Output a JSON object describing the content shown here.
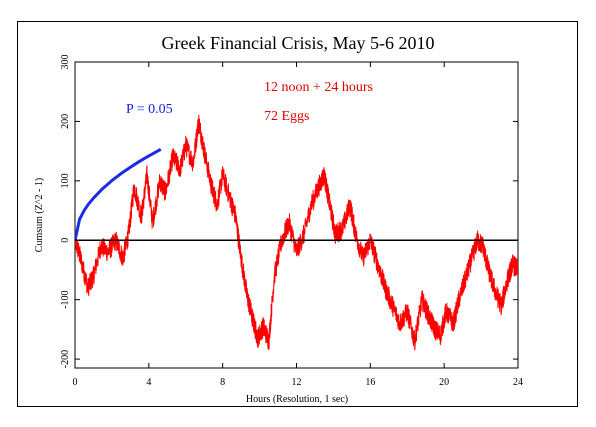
{
  "chart_data": {
    "type": "line",
    "title": "Greek Financial Crisis, May 5-6 2010",
    "xlabel": "Hours (Resolution, 1 sec)",
    "ylabel": "Cumsum (Z^2 - 1)",
    "xlim": [
      0,
      24
    ],
    "ylim": [
      -215,
      300
    ],
    "x_ticks": [
      0,
      4,
      8,
      12,
      16,
      20,
      24
    ],
    "y_ticks": [
      -200,
      -100,
      0,
      100,
      200,
      300
    ],
    "grid": false,
    "annotations": [
      {
        "text": "12 noon + 24 hours",
        "color": "#e00000"
      },
      {
        "text": "72 Eggs",
        "color": "#e00000"
      },
      {
        "text": "P = 0.05",
        "color": "#1020e0"
      }
    ],
    "series": [
      {
        "name": "cumsum",
        "color": "#ff0000",
        "x": [
          0,
          0.3,
          0.7,
          1.0,
          1.4,
          1.8,
          2.2,
          2.6,
          2.9,
          3.2,
          3.6,
          3.9,
          4.2,
          4.6,
          4.9,
          5.3,
          5.7,
          6.0,
          6.4,
          6.7,
          7.0,
          7.4,
          7.7,
          8.0,
          8.4,
          8.7,
          9.0,
          9.3,
          9.6,
          9.9,
          10.2,
          10.5,
          10.8,
          11.2,
          11.6,
          12.0,
          12.4,
          12.8,
          13.2,
          13.5,
          13.8,
          14.1,
          14.5,
          14.9,
          15.2,
          15.6,
          16.0,
          16.4,
          16.8,
          17.2,
          17.6,
          18.0,
          18.4,
          18.8,
          19.2,
          19.5,
          19.8,
          20.1,
          20.5,
          20.8,
          21.2,
          21.5,
          21.8,
          22.1,
          22.4,
          22.8,
          23.1,
          23.4,
          23.7,
          24.0
        ],
        "y": [
          0,
          -30,
          -80,
          -60,
          -10,
          -20,
          0,
          -30,
          10,
          90,
          40,
          110,
          30,
          100,
          80,
          140,
          120,
          160,
          130,
          200,
          150,
          90,
          60,
          110,
          70,
          40,
          -30,
          -90,
          -130,
          -165,
          -145,
          -170,
          -60,
          0,
          30,
          -20,
          10,
          60,
          90,
          110,
          60,
          10,
          20,
          60,
          10,
          -30,
          0,
          -40,
          -80,
          -110,
          -140,
          -120,
          -170,
          -100,
          -130,
          -150,
          -160,
          -120,
          -140,
          -100,
          -60,
          -30,
          0,
          -10,
          -50,
          -90,
          -110,
          -70,
          -40,
          -50
        ]
      },
      {
        "name": "P = 0.05",
        "color": "#1a2be8",
        "x": [
          0,
          0.25,
          0.5,
          0.75,
          1.0,
          1.5,
          2.0,
          2.5,
          3.0,
          3.5,
          4.0,
          4.5,
          4.65
        ],
        "y": [
          0,
          35.5,
          50.2,
          61.5,
          71.0,
          87.0,
          100.4,
          112.3,
          123.0,
          132.9,
          142.0,
          150.6,
          153.0
        ]
      }
    ]
  }
}
